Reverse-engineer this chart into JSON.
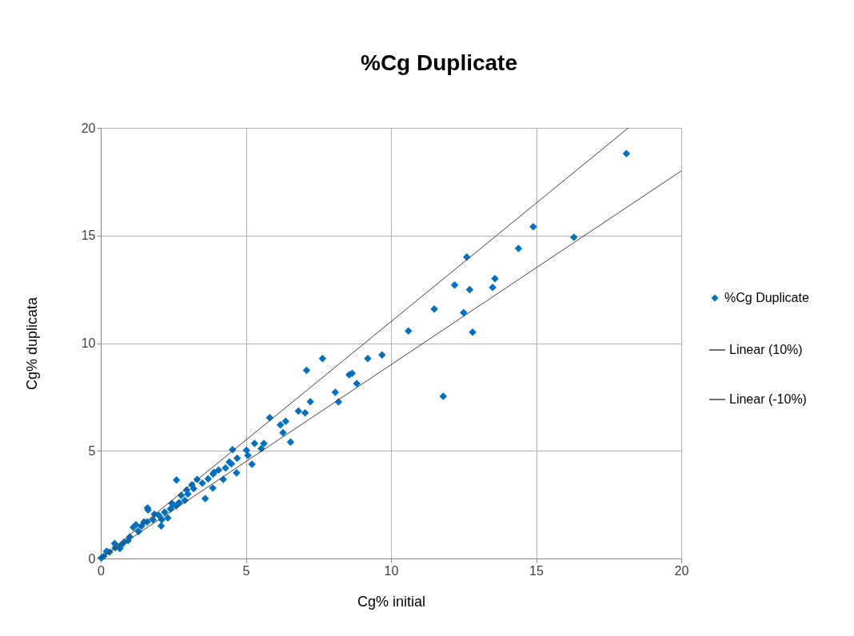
{
  "chart_data": {
    "type": "scatter",
    "title": "%Cg Duplicate",
    "xlabel": "Cg% initial",
    "ylabel": "Cg% duplicata",
    "xlim": [
      0,
      20
    ],
    "ylim": [
      0,
      20
    ],
    "xticks": [
      0,
      5,
      10,
      15,
      20
    ],
    "yticks": [
      0,
      5,
      10,
      15,
      20
    ],
    "grid": true,
    "legend": "right",
    "series": [
      {
        "name": "%Cg Duplicate",
        "marker": "diamond",
        "color": "#0070c0",
        "x": [
          18.11,
          14.9,
          16.3,
          14.39,
          12.61,
          12.19,
          12.71,
          13.58,
          13.5,
          11.49,
          12.5,
          12.81,
          10.6,
          11.8,
          9.69,
          9.2,
          7.64,
          7.09,
          8.56,
          8.66,
          8.82,
          8.08,
          8.19,
          7.22,
          7.04,
          6.81,
          5.82,
          6.19,
          6.37,
          6.28,
          6.54,
          5.62,
          5.53,
          5.3,
          5.02,
          5.07,
          5.21,
          4.54,
          4.7,
          4.43,
          4.68,
          4.22,
          3.86,
          3.6,
          2.61,
          4.06,
          3.87,
          3.32,
          3.14,
          2.77,
          2.96,
          2.45,
          2.31,
          2.08,
          1.63,
          1.61,
          1.85,
          1.21,
          1.12,
          1.49,
          0.94,
          0.66,
          0.48,
          0.2,
          0.02,
          0.1,
          0.3,
          0.5,
          0.8,
          1.0,
          1.3,
          1.6,
          1.8,
          2.0,
          2.2,
          2.5,
          2.7,
          3.0,
          3.2,
          3.5,
          3.7,
          3.9,
          4.3,
          4.5,
          2.9,
          2.4,
          1.4,
          0.7,
          2.1,
          2.6
        ],
        "values": [
          18.8,
          15.41,
          14.92,
          14.4,
          14.0,
          12.7,
          12.49,
          13.0,
          12.59,
          11.59,
          11.42,
          10.51,
          10.57,
          7.53,
          9.45,
          9.29,
          9.29,
          8.74,
          8.53,
          8.6,
          8.13,
          7.72,
          7.27,
          7.28,
          6.76,
          6.85,
          6.54,
          6.21,
          6.37,
          5.84,
          5.41,
          5.34,
          5.1,
          5.34,
          5.03,
          4.79,
          4.38,
          5.06,
          4.66,
          4.48,
          3.98,
          3.67,
          3.27,
          2.78,
          3.65,
          4.11,
          3.92,
          3.67,
          3.42,
          2.93,
          3.18,
          2.56,
          1.88,
          1.51,
          2.25,
          2.35,
          2.06,
          1.57,
          1.45,
          1.7,
          0.83,
          0.46,
          0.7,
          0.33,
          0.03,
          0.1,
          0.3,
          0.5,
          0.75,
          1.0,
          1.25,
          1.7,
          1.8,
          2.0,
          2.15,
          2.5,
          2.6,
          3.0,
          3.25,
          3.5,
          3.7,
          4.0,
          4.2,
          4.4,
          2.7,
          2.3,
          1.5,
          0.6,
          1.8,
          2.45
        ]
      },
      {
        "name": "Linear (10%)",
        "type": "line",
        "color": "#404040",
        "x": [
          0,
          18.18
        ],
        "values": [
          0,
          20
        ]
      },
      {
        "name": "Linear (-10%)",
        "type": "line",
        "color": "#404040",
        "x": [
          0,
          20
        ],
        "values": [
          0,
          18
        ]
      }
    ]
  }
}
